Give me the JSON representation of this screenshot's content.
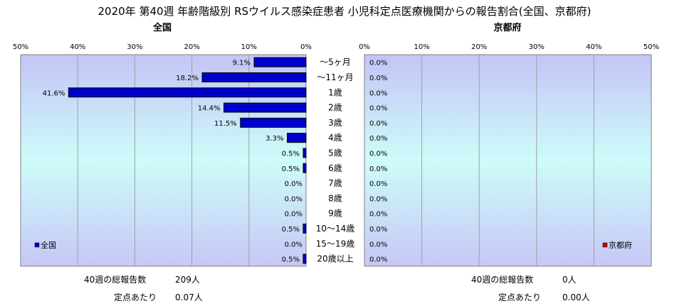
{
  "title": "2020年 第40週 年齢階級別 RSウイルス感染症患者 小児科定点医療機関からの報告割合(全国、京都府)",
  "chart_data": [
    {
      "type": "bar",
      "orientation": "horizontal",
      "direction": "right-to-left",
      "title": "全国",
      "xlim": [
        0,
        50
      ],
      "ticks": [
        "0%",
        "10%",
        "20%",
        "30%",
        "40%",
        "50%"
      ],
      "categories": [
        "～5ヶ月",
        "～11ヶ月",
        "1歳",
        "2歳",
        "3歳",
        "4歳",
        "5歳",
        "6歳",
        "7歳",
        "8歳",
        "9歳",
        "10～14歳",
        "15～19歳",
        "20歳以上"
      ],
      "series": [
        {
          "name": "全国",
          "color": "#0000cc",
          "values": [
            9.1,
            18.2,
            41.6,
            14.4,
            11.5,
            3.3,
            0.5,
            0.5,
            0.0,
            0.0,
            0.0,
            0.5,
            0.0,
            0.5
          ],
          "labels": [
            "9.1%",
            "18.2%",
            "41.6%",
            "14.4%",
            "11.5%",
            "3.3%",
            "0.5%",
            "0.5%",
            "0.0%",
            "0.0%",
            "0.0%",
            "0.5%",
            "0.0%",
            "0.5%"
          ]
        }
      ],
      "legend": "bottom-left",
      "grid": true
    },
    {
      "type": "bar",
      "orientation": "horizontal",
      "direction": "left-to-right",
      "title": "京都府",
      "xlim": [
        0,
        50
      ],
      "ticks": [
        "0%",
        "10%",
        "20%",
        "30%",
        "40%",
        "50%"
      ],
      "series": [
        {
          "name": "京都府",
          "color": "#cc0000",
          "values": [
            0,
            0,
            0,
            0,
            0,
            0,
            0,
            0,
            0,
            0,
            0,
            0,
            0,
            0
          ],
          "labels": [
            "0.0%",
            "0.0%",
            "0.0%",
            "0.0%",
            "0.0%",
            "0.0%",
            "0.0%",
            "0.0%",
            "0.0%",
            "0.0%",
            "0.0%",
            "0.0%",
            "0.0%",
            "0.0%"
          ]
        }
      ],
      "legend": "bottom-right",
      "grid": true
    }
  ],
  "footer": {
    "national": {
      "total_label": "40週の総報告数",
      "total_value": "209人",
      "per_label": "定点あたり",
      "per_value": "0.07人"
    },
    "kyoto": {
      "total_label": "40週の総報告数",
      "total_value": "0人",
      "per_label": "定点あたり",
      "per_value": "0.00人"
    }
  }
}
